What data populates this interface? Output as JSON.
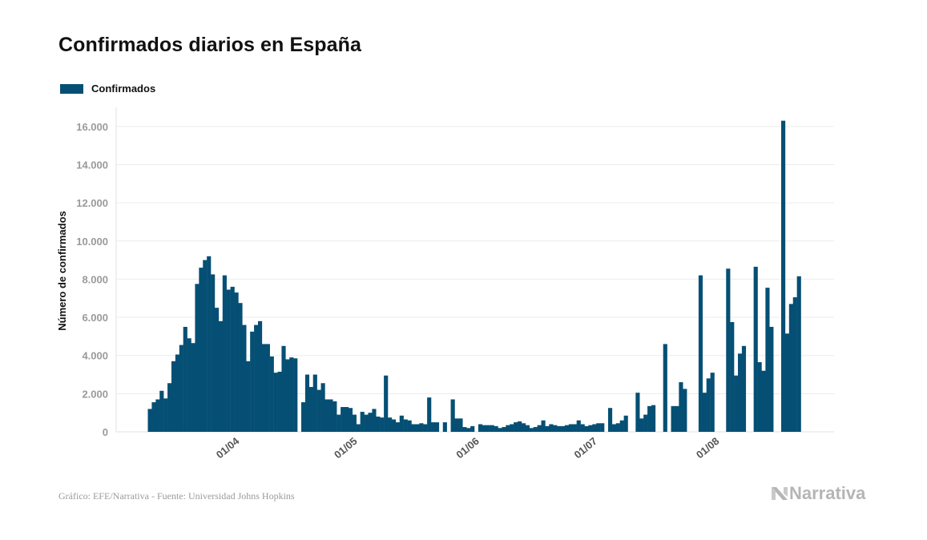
{
  "title": "Confirmados diarios en España",
  "legend": {
    "label": "Confirmados",
    "color": "#064f74"
  },
  "source": "Gráfico: EFE/Narrativa - Fuente: Universidad Johns Hopkins",
  "brand": {
    "name": "Narrativa",
    "icon": "narrativa-logo-icon"
  },
  "chart_data": {
    "type": "bar",
    "title": "Confirmados diarios en España",
    "ylabel": "Número de confirmados",
    "xlabel": "",
    "ylim": [
      0,
      17000
    ],
    "yticks": [
      0,
      2000,
      4000,
      6000,
      8000,
      10000,
      12000,
      14000,
      16000
    ],
    "ytick_labels": [
      "0",
      "2.000",
      "4.000",
      "6.000",
      "8.000",
      "10.000",
      "12.000",
      "14.000",
      "16.000"
    ],
    "xticks": [
      {
        "date": "2020-04-01",
        "label": "01/04"
      },
      {
        "date": "2020-05-01",
        "label": "01/05"
      },
      {
        "date": "2020-06-01",
        "label": "01/06"
      },
      {
        "date": "2020-07-01",
        "label": "01/07"
      },
      {
        "date": "2020-08-01",
        "label": "01/08"
      }
    ],
    "grid": true,
    "legend_position": "top-left",
    "color": "#064f74",
    "series": [
      {
        "name": "Confirmados",
        "points": [
          [
            "2020-03-09",
            1200
          ],
          [
            "2020-03-10",
            1550
          ],
          [
            "2020-03-11",
            1700
          ],
          [
            "2020-03-12",
            2150
          ],
          [
            "2020-03-13",
            1750
          ],
          [
            "2020-03-14",
            2550
          ],
          [
            "2020-03-15",
            3700
          ],
          [
            "2020-03-16",
            4050
          ],
          [
            "2020-03-17",
            4550
          ],
          [
            "2020-03-18",
            5500
          ],
          [
            "2020-03-19",
            4900
          ],
          [
            "2020-03-20",
            4650
          ],
          [
            "2020-03-21",
            7750
          ],
          [
            "2020-03-22",
            8600
          ],
          [
            "2020-03-23",
            9000
          ],
          [
            "2020-03-24",
            9200
          ],
          [
            "2020-03-25",
            8250
          ],
          [
            "2020-03-26",
            6500
          ],
          [
            "2020-03-27",
            5800
          ],
          [
            "2020-03-28",
            8200
          ],
          [
            "2020-03-29",
            7450
          ],
          [
            "2020-03-30",
            7600
          ],
          [
            "2020-03-31",
            7300
          ],
          [
            "2020-04-01",
            6750
          ],
          [
            "2020-04-02",
            5600
          ],
          [
            "2020-04-03",
            3700
          ],
          [
            "2020-04-04",
            5250
          ],
          [
            "2020-04-05",
            5600
          ],
          [
            "2020-04-06",
            5800
          ],
          [
            "2020-04-07",
            4600
          ],
          [
            "2020-04-08",
            4600
          ],
          [
            "2020-04-09",
            3950
          ],
          [
            "2020-04-10",
            3100
          ],
          [
            "2020-04-11",
            3150
          ],
          [
            "2020-04-12",
            4500
          ],
          [
            "2020-04-13",
            3800
          ],
          [
            "2020-04-14",
            3900
          ],
          [
            "2020-04-15",
            3850
          ],
          [
            "2020-04-17",
            1550
          ],
          [
            "2020-04-18",
            3000
          ],
          [
            "2020-04-19",
            2350
          ],
          [
            "2020-04-20",
            3000
          ],
          [
            "2020-04-21",
            2200
          ],
          [
            "2020-04-22",
            2550
          ],
          [
            "2020-04-23",
            1700
          ],
          [
            "2020-04-24",
            1700
          ],
          [
            "2020-04-25",
            1600
          ],
          [
            "2020-04-26",
            900
          ],
          [
            "2020-04-27",
            1300
          ],
          [
            "2020-04-28",
            1300
          ],
          [
            "2020-04-29",
            1250
          ],
          [
            "2020-04-30",
            900
          ],
          [
            "2020-05-01",
            400
          ],
          [
            "2020-05-02",
            1050
          ],
          [
            "2020-05-03",
            900
          ],
          [
            "2020-05-04",
            1000
          ],
          [
            "2020-05-05",
            1200
          ],
          [
            "2020-05-06",
            800
          ],
          [
            "2020-05-07",
            750
          ],
          [
            "2020-05-08",
            2950
          ],
          [
            "2020-05-09",
            750
          ],
          [
            "2020-05-10",
            650
          ],
          [
            "2020-05-11",
            500
          ],
          [
            "2020-05-12",
            850
          ],
          [
            "2020-05-13",
            650
          ],
          [
            "2020-05-14",
            600
          ],
          [
            "2020-05-15",
            400
          ],
          [
            "2020-05-16",
            400
          ],
          [
            "2020-05-17",
            450
          ],
          [
            "2020-05-18",
            400
          ],
          [
            "2020-05-19",
            1800
          ],
          [
            "2020-05-20",
            500
          ],
          [
            "2020-05-21",
            500
          ],
          [
            "2020-05-23",
            500
          ],
          [
            "2020-05-25",
            1700
          ],
          [
            "2020-05-26",
            700
          ],
          [
            "2020-05-27",
            700
          ],
          [
            "2020-05-28",
            250
          ],
          [
            "2020-05-29",
            200
          ],
          [
            "2020-05-30",
            300
          ],
          [
            "2020-06-01",
            400
          ],
          [
            "2020-06-02",
            350
          ],
          [
            "2020-06-03",
            350
          ],
          [
            "2020-06-04",
            350
          ],
          [
            "2020-06-05",
            300
          ],
          [
            "2020-06-06",
            200
          ],
          [
            "2020-06-07",
            250
          ],
          [
            "2020-06-08",
            350
          ],
          [
            "2020-06-09",
            400
          ],
          [
            "2020-06-10",
            500
          ],
          [
            "2020-06-11",
            550
          ],
          [
            "2020-06-12",
            450
          ],
          [
            "2020-06-13",
            350
          ],
          [
            "2020-06-14",
            200
          ],
          [
            "2020-06-15",
            250
          ],
          [
            "2020-06-16",
            350
          ],
          [
            "2020-06-17",
            600
          ],
          [
            "2020-06-18",
            300
          ],
          [
            "2020-06-19",
            400
          ],
          [
            "2020-06-20",
            350
          ],
          [
            "2020-06-21",
            300
          ],
          [
            "2020-06-22",
            300
          ],
          [
            "2020-06-23",
            350
          ],
          [
            "2020-06-24",
            400
          ],
          [
            "2020-06-25",
            400
          ],
          [
            "2020-06-26",
            600
          ],
          [
            "2020-06-27",
            400
          ],
          [
            "2020-06-28",
            300
          ],
          [
            "2020-06-29",
            350
          ],
          [
            "2020-06-30",
            400
          ],
          [
            "2020-07-01",
            450
          ],
          [
            "2020-07-02",
            450
          ],
          [
            "2020-07-04",
            1250
          ],
          [
            "2020-07-05",
            400
          ],
          [
            "2020-07-06",
            450
          ],
          [
            "2020-07-07",
            600
          ],
          [
            "2020-07-08",
            850
          ],
          [
            "2020-07-11",
            2050
          ],
          [
            "2020-07-12",
            700
          ],
          [
            "2020-07-13",
            900
          ],
          [
            "2020-07-14",
            1350
          ],
          [
            "2020-07-15",
            1400
          ],
          [
            "2020-07-18",
            4600
          ],
          [
            "2020-07-20",
            1350
          ],
          [
            "2020-07-21",
            1350
          ],
          [
            "2020-07-22",
            2600
          ],
          [
            "2020-07-23",
            2250
          ],
          [
            "2020-07-27",
            8200
          ],
          [
            "2020-07-28",
            2050
          ],
          [
            "2020-07-29",
            2800
          ],
          [
            "2020-07-30",
            3100
          ],
          [
            "2020-08-03",
            8550
          ],
          [
            "2020-08-04",
            5750
          ],
          [
            "2020-08-05",
            2950
          ],
          [
            "2020-08-06",
            4100
          ],
          [
            "2020-08-07",
            4500
          ],
          [
            "2020-08-10",
            8650
          ],
          [
            "2020-08-11",
            3650
          ],
          [
            "2020-08-12",
            3200
          ],
          [
            "2020-08-13",
            7550
          ],
          [
            "2020-08-14",
            5500
          ],
          [
            "2020-08-17",
            16300
          ],
          [
            "2020-08-18",
            5150
          ],
          [
            "2020-08-19",
            6700
          ],
          [
            "2020-08-20",
            7050
          ],
          [
            "2020-08-21",
            8150
          ]
        ]
      }
    ]
  }
}
